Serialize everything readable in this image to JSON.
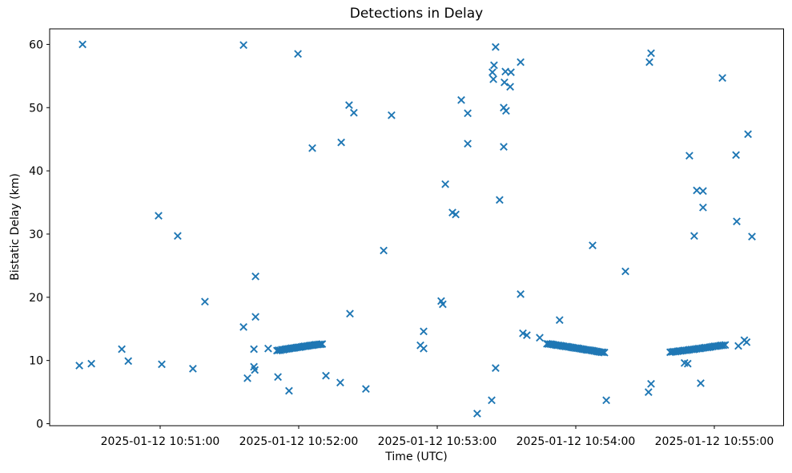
{
  "figure": {
    "background_color": "#ffffff",
    "frame_color": "#000000"
  },
  "chart_data": {
    "type": "scatter",
    "title": "Detections in Delay",
    "xlabel": "Time (UTC)",
    "ylabel": "Bistatic Delay (km)",
    "marker": "x",
    "marker_color": "#1f77b4",
    "grid": false,
    "legend": null,
    "time_origin": "2025-01-12 10:50:00",
    "points_format": [
      "seconds_after_time_origin",
      "bistatic_delay_km"
    ],
    "x_ticks": [
      {
        "t": 60,
        "label": "2025-01-12 10:51:00"
      },
      {
        "t": 120,
        "label": "2025-01-12 10:52:00"
      },
      {
        "t": 180,
        "label": "2025-01-12 10:53:00"
      },
      {
        "t": 240,
        "label": "2025-01-12 10:54:00"
      },
      {
        "t": 300,
        "label": "2025-01-12 10:55:00"
      }
    ],
    "y_ticks": [
      {
        "v": 0,
        "label": "0"
      },
      {
        "v": 10,
        "label": "10"
      },
      {
        "v": 20,
        "label": "20"
      },
      {
        "v": 30,
        "label": "30"
      },
      {
        "v": 40,
        "label": "40"
      },
      {
        "v": 50,
        "label": "50"
      },
      {
        "v": 60,
        "label": "60"
      }
    ],
    "xlim_seconds": [
      12,
      331
    ],
    "ylim": [
      -0.3,
      62.5
    ],
    "points": [
      [
        26.4,
        60.0
      ],
      [
        96.1,
        59.9
      ],
      [
        119.7,
        58.5
      ],
      [
        59.3,
        32.9
      ],
      [
        67.6,
        29.7
      ],
      [
        101.3,
        23.3
      ],
      [
        79.4,
        19.3
      ],
      [
        101.3,
        16.9
      ],
      [
        96.1,
        15.3
      ],
      [
        100.6,
        11.8
      ],
      [
        106.8,
        11.9
      ],
      [
        43.4,
        11.8
      ],
      [
        46.2,
        9.9
      ],
      [
        25.0,
        9.2
      ],
      [
        30.2,
        9.5
      ],
      [
        60.7,
        9.4
      ],
      [
        74.2,
        8.7
      ],
      [
        100.6,
        9.0
      ],
      [
        101.0,
        8.5
      ],
      [
        97.8,
        7.2
      ],
      [
        111.0,
        7.4
      ],
      [
        115.8,
        5.2
      ],
      [
        190.4,
        51.2
      ],
      [
        141.8,
        50.4
      ],
      [
        143.9,
        49.2
      ],
      [
        160.2,
        48.8
      ],
      [
        193.2,
        49.1
      ],
      [
        205.3,
        59.6
      ],
      [
        216.1,
        57.2
      ],
      [
        204.6,
        56.7
      ],
      [
        203.9,
        55.6
      ],
      [
        209.5,
        55.7
      ],
      [
        211.9,
        55.6
      ],
      [
        204.3,
        54.5
      ],
      [
        209.1,
        54.0
      ],
      [
        211.6,
        53.3
      ],
      [
        208.8,
        50.0
      ],
      [
        209.8,
        49.5
      ],
      [
        138.4,
        44.5
      ],
      [
        125.9,
        43.6
      ],
      [
        193.2,
        44.3
      ],
      [
        208.8,
        43.8
      ],
      [
        183.5,
        37.9
      ],
      [
        207.0,
        35.4
      ],
      [
        186.6,
        33.4
      ],
      [
        188.0,
        33.1
      ],
      [
        272.6,
        58.6
      ],
      [
        271.9,
        57.2
      ],
      [
        303.5,
        54.7
      ],
      [
        314.6,
        45.8
      ],
      [
        289.2,
        42.4
      ],
      [
        309.4,
        42.5
      ],
      [
        292.4,
        36.9
      ],
      [
        295.1,
        36.8
      ],
      [
        295.1,
        34.2
      ],
      [
        309.7,
        32.0
      ],
      [
        291.3,
        29.7
      ],
      [
        316.3,
        29.6
      ],
      [
        247.3,
        28.2
      ],
      [
        261.5,
        24.1
      ],
      [
        233.0,
        16.4
      ],
      [
        287.1,
        9.6
      ],
      [
        288.5,
        9.5
      ],
      [
        272.6,
        6.3
      ],
      [
        271.5,
        5.0
      ],
      [
        294.1,
        6.4
      ],
      [
        253.2,
        3.7
      ],
      [
        156.8,
        27.4
      ],
      [
        216.1,
        20.5
      ],
      [
        181.7,
        19.4
      ],
      [
        182.4,
        18.9
      ],
      [
        142.2,
        17.4
      ],
      [
        174.1,
        14.6
      ],
      [
        172.7,
        12.4
      ],
      [
        174.1,
        11.9
      ],
      [
        131.8,
        7.6
      ],
      [
        138.0,
        6.5
      ],
      [
        149.1,
        5.5
      ],
      [
        205.3,
        8.8
      ],
      [
        217.1,
        14.3
      ],
      [
        218.8,
        14.0
      ],
      [
        224.4,
        13.6
      ],
      [
        203.6,
        3.7
      ],
      [
        197.3,
        1.6
      ],
      [
        310.4,
        12.3
      ],
      [
        313.0,
        13.2
      ],
      [
        314.0,
        12.9
      ],
      [
        110.6,
        11.55
      ],
      [
        111.3,
        11.62
      ],
      [
        112.0,
        11.6
      ],
      [
        112.7,
        11.72
      ],
      [
        113.4,
        11.7
      ],
      [
        114.1,
        11.78
      ],
      [
        114.8,
        11.82
      ],
      [
        115.5,
        11.85
      ],
      [
        116.2,
        11.9
      ],
      [
        116.9,
        11.95
      ],
      [
        117.6,
        11.95
      ],
      [
        118.3,
        12.0
      ],
      [
        119.0,
        12.05
      ],
      [
        119.7,
        12.1
      ],
      [
        120.4,
        12.1
      ],
      [
        121.1,
        12.15
      ],
      [
        121.8,
        12.2
      ],
      [
        122.5,
        12.25
      ],
      [
        123.2,
        12.25
      ],
      [
        123.9,
        12.3
      ],
      [
        124.6,
        12.35
      ],
      [
        125.3,
        12.4
      ],
      [
        126.0,
        12.4
      ],
      [
        126.7,
        12.45
      ],
      [
        127.4,
        12.5
      ],
      [
        128.1,
        12.5
      ],
      [
        128.8,
        12.55
      ],
      [
        129.5,
        12.55
      ],
      [
        130.2,
        12.6
      ],
      [
        227.5,
        12.65
      ],
      [
        228.2,
        12.6
      ],
      [
        229.0,
        12.6
      ],
      [
        229.7,
        12.55
      ],
      [
        230.4,
        12.5
      ],
      [
        231.2,
        12.45
      ],
      [
        231.9,
        12.4
      ],
      [
        232.6,
        12.4
      ],
      [
        233.4,
        12.35
      ],
      [
        234.1,
        12.3
      ],
      [
        234.8,
        12.25
      ],
      [
        235.6,
        12.2
      ],
      [
        236.3,
        12.2
      ],
      [
        237.0,
        12.15
      ],
      [
        237.8,
        12.1
      ],
      [
        238.5,
        12.05
      ],
      [
        239.2,
        12.0
      ],
      [
        240.0,
        11.95
      ],
      [
        240.7,
        11.95
      ],
      [
        241.4,
        11.9
      ],
      [
        242.2,
        11.85
      ],
      [
        242.9,
        11.8
      ],
      [
        243.6,
        11.75
      ],
      [
        244.4,
        11.7
      ],
      [
        245.1,
        11.65
      ],
      [
        245.8,
        11.65
      ],
      [
        246.6,
        11.6
      ],
      [
        247.3,
        11.55
      ],
      [
        248.0,
        11.5
      ],
      [
        248.8,
        11.45
      ],
      [
        249.5,
        11.4
      ],
      [
        250.2,
        11.35
      ],
      [
        251.0,
        11.3
      ],
      [
        251.7,
        11.3
      ],
      [
        252.4,
        11.25
      ],
      [
        280.9,
        11.3
      ],
      [
        281.7,
        11.35
      ],
      [
        282.4,
        11.4
      ],
      [
        283.2,
        11.4
      ],
      [
        284.0,
        11.45
      ],
      [
        284.7,
        11.5
      ],
      [
        285.5,
        11.5
      ],
      [
        286.3,
        11.55
      ],
      [
        287.0,
        11.6
      ],
      [
        287.8,
        11.6
      ],
      [
        288.6,
        11.65
      ],
      [
        289.3,
        11.7
      ],
      [
        290.1,
        11.75
      ],
      [
        290.9,
        11.75
      ],
      [
        291.6,
        11.8
      ],
      [
        292.4,
        11.85
      ],
      [
        293.2,
        11.9
      ],
      [
        293.9,
        11.9
      ],
      [
        294.7,
        11.95
      ],
      [
        295.5,
        12.0
      ],
      [
        296.2,
        12.05
      ],
      [
        297.0,
        12.05
      ],
      [
        297.8,
        12.1
      ],
      [
        298.5,
        12.15
      ],
      [
        299.3,
        12.2
      ],
      [
        300.1,
        12.25
      ],
      [
        300.8,
        12.25
      ],
      [
        301.6,
        12.3
      ],
      [
        302.4,
        12.35
      ],
      [
        303.1,
        12.4
      ],
      [
        303.9,
        12.4
      ],
      [
        304.7,
        12.45
      ]
    ]
  }
}
